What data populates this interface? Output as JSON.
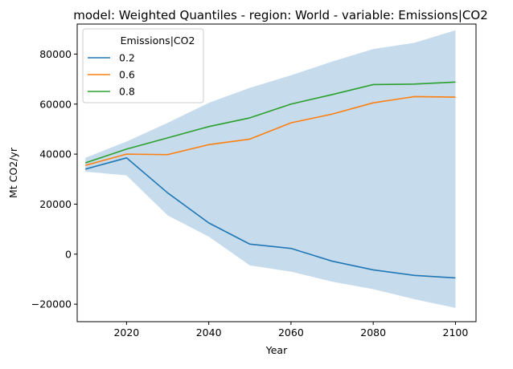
{
  "chart_data": {
    "type": "line",
    "title": "model: Weighted Quantiles - region: World - variable: Emissions|CO2",
    "xlabel": "Year",
    "ylabel": "Mt CO2/yr",
    "xlim": [
      2008,
      2105
    ],
    "ylim": [
      -27000,
      92000
    ],
    "xticks": [
      2020,
      2040,
      2060,
      2080,
      2100
    ],
    "xtick_labels": [
      "2020",
      "2040",
      "2060",
      "2080",
      "2100"
    ],
    "yticks": [
      -20000,
      0,
      20000,
      40000,
      60000,
      80000
    ],
    "ytick_labels": [
      "−20000",
      "0",
      "20000",
      "40000",
      "60000",
      "80000"
    ],
    "grid": false,
    "legend": {
      "title": "Emissions|CO2",
      "position": "top-left"
    },
    "x": [
      2010,
      2020,
      2030,
      2040,
      2050,
      2060,
      2070,
      2080,
      2090,
      2100
    ],
    "band": {
      "color": "#c6dbec",
      "upper": [
        38500,
        45000,
        52500,
        60500,
        66500,
        71500,
        77000,
        82000,
        84500,
        89500
      ],
      "lower": [
        33000,
        31500,
        15500,
        7000,
        -4500,
        -7000,
        -11000,
        -14000,
        -18000,
        -21500
      ]
    },
    "series": [
      {
        "name": "0.2",
        "color": "#1f77b4",
        "values": [
          34000,
          38500,
          24500,
          12500,
          4000,
          2300,
          -2800,
          -6300,
          -8500,
          -9500
        ]
      },
      {
        "name": "0.6",
        "color": "#ff7f0e",
        "values": [
          35500,
          40000,
          39800,
          43800,
          46000,
          52500,
          56000,
          60500,
          63000,
          62800
        ]
      },
      {
        "name": "0.8",
        "color": "#2ca02c",
        "values": [
          36500,
          42000,
          46500,
          51000,
          54500,
          60000,
          63800,
          67800,
          68000,
          68800
        ]
      }
    ]
  }
}
